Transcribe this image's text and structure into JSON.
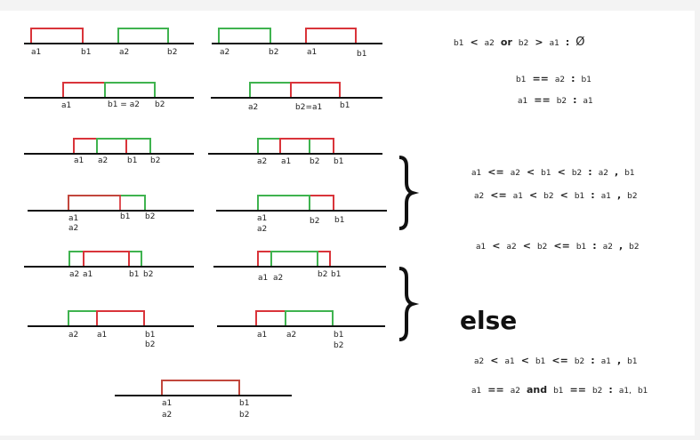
{
  "diagrams": [
    {
      "labels": [
        "a1",
        "b1",
        "a2",
        "b2"
      ]
    },
    {
      "labels": [
        "a2",
        "b2",
        "a1",
        "b1"
      ]
    },
    {
      "labels": [
        "a1",
        "b1 = a2",
        "b2"
      ]
    },
    {
      "labels": [
        "a2",
        "b2=a1",
        "b1"
      ]
    },
    {
      "labels": [
        "a1",
        "a2",
        "b1",
        "b2"
      ]
    },
    {
      "labels": [
        "a2",
        "a1",
        "b2",
        "b1"
      ]
    },
    {
      "labels": [
        "a1",
        "a2",
        "b1",
        "b2"
      ]
    },
    {
      "labels": [
        "a1",
        "a2",
        "b2",
        "b1"
      ]
    },
    {
      "labels": [
        "a2",
        "a1",
        "b1",
        "b2"
      ]
    },
    {
      "labels": [
        "a1",
        "a2",
        "b2",
        "b1"
      ]
    },
    {
      "labels": [
        "a2",
        "a1",
        "b1",
        "b2"
      ]
    },
    {
      "labels": [
        "a1",
        "a2",
        "b1",
        "b2"
      ]
    },
    {
      "labels": [
        "a1",
        "a2",
        "b1",
        "b2"
      ]
    }
  ],
  "rules": [
    [
      "b1",
      "<",
      "a2",
      "or",
      "b2",
      ">",
      "a1",
      ":",
      "Ø"
    ],
    [
      "b1",
      "==",
      "a2",
      ":",
      "b1"
    ],
    [
      "a1",
      "==",
      "b2",
      ":",
      "a1"
    ],
    [
      "a1",
      "<=",
      "a2",
      "<",
      "b1",
      "<",
      "b2",
      ":",
      "a2",
      ",",
      "b1"
    ],
    [
      "a2",
      "<=",
      "a1",
      "<",
      "b2",
      "<",
      "b1",
      ":",
      "a1",
      ",",
      "b2"
    ],
    [
      "a1",
      "<",
      "a2",
      "<",
      "b2",
      "<=",
      "b1",
      ":",
      "a2",
      ",",
      "b2"
    ],
    [
      "a2",
      "<",
      "a1",
      "<",
      "b1",
      "<=",
      "b2",
      ":",
      "a1",
      ",",
      "b1"
    ],
    [
      "a1",
      "==",
      "a2",
      "and",
      "b1",
      "==",
      "b2",
      ":",
      "a1,",
      "b1"
    ]
  ],
  "else": "else"
}
